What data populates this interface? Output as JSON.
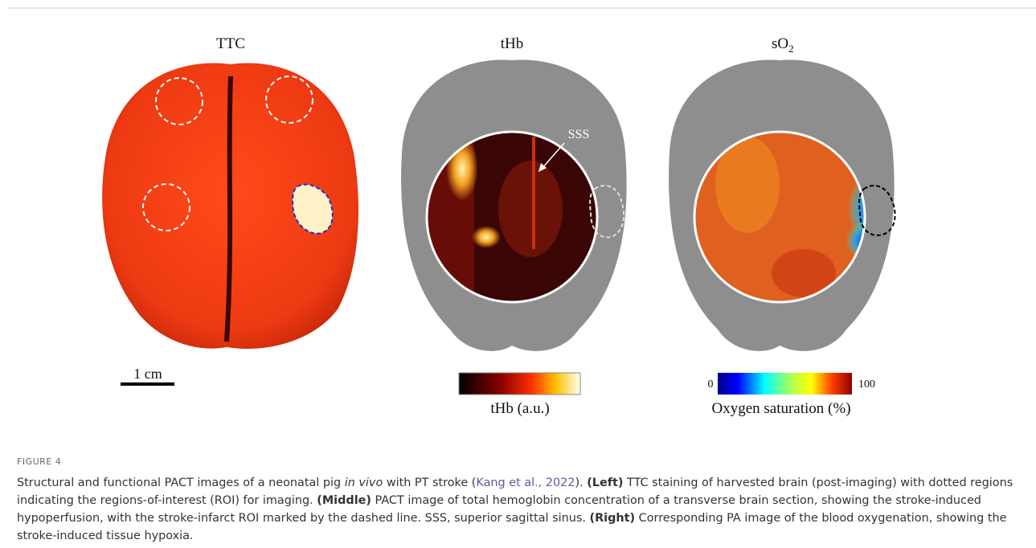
{
  "figure": {
    "panels": [
      {
        "title": "TTC",
        "scale_bar": "1 cm"
      },
      {
        "title": "tHb",
        "annotation": "SSS",
        "colorbar_label": "tHb (a.u.)"
      },
      {
        "title": "sO",
        "title_subscript": "2",
        "colorbar_min": "0",
        "colorbar_max": "100",
        "colorbar_label": "Oxygen saturation (%)"
      }
    ],
    "label": "FIGURE 4",
    "caption": [
      "Structural and functional PACT images of a neonatal pig ",
      "in vivo",
      " with PT stroke (",
      "Kang et al., 2022",
      "). ",
      "(Left)",
      " TTC staining of harvested brain (post-imaging) with dotted regions indicating the regions-of-interest (ROI) for imaging. ",
      "(Middle)",
      " PACT image of total hemoglobin concentration of a transverse brain section, showing the stroke-induced hypoperfusion, with the stroke-infarct ROI marked by the dashed line. SSS, superior sagittal sinus. ",
      "(Right)",
      " Corresponding PA image of the blood oxygenation, showing the stroke-induced tissue hypoxia."
    ]
  }
}
